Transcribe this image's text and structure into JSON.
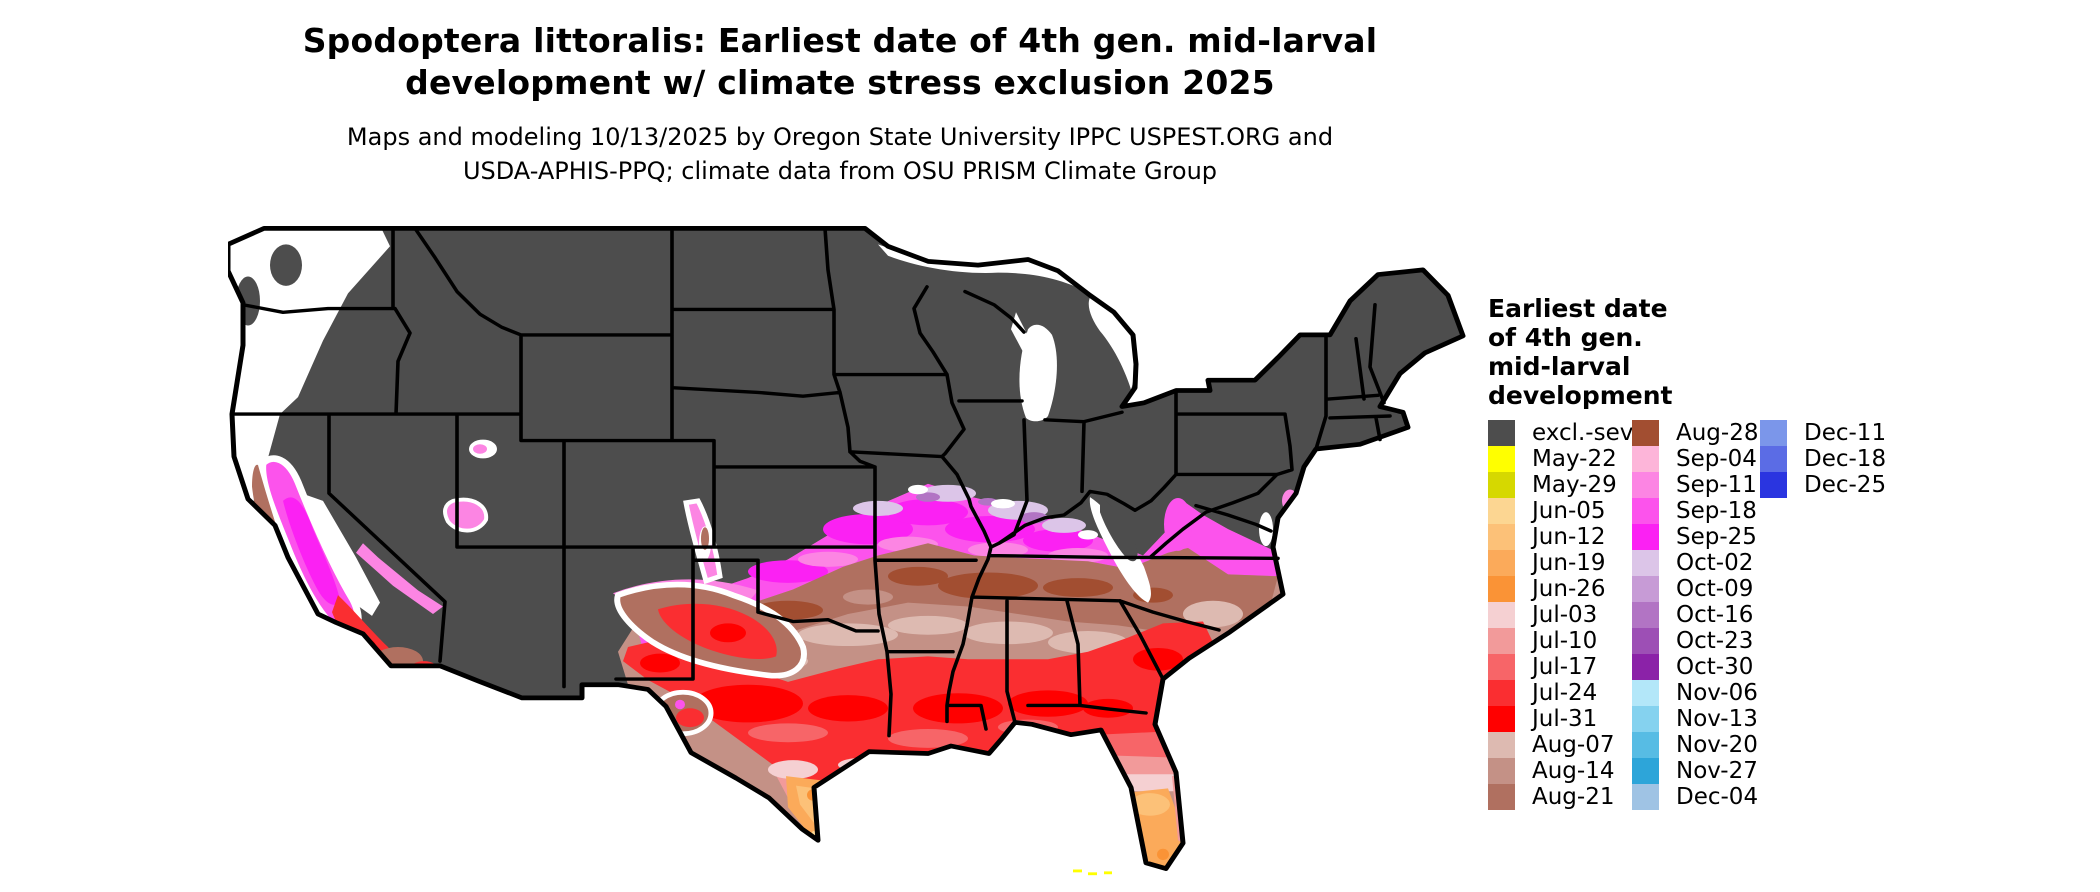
{
  "title": {
    "line1": "Spodoptera littoralis: Earliest date of 4th gen. mid-larval",
    "line2": "development w/ climate stress exclusion 2025"
  },
  "subtitle": {
    "line1": "Maps and modeling 10/13/2025 by Oregon State University IPPC USPEST.ORG and",
    "line2": "USDA-APHIS-PPQ; climate data from OSU PRISM Climate Group"
  },
  "legend": {
    "title_lines": [
      "Earliest date",
      "of 4th gen.",
      "mid-larval",
      "development"
    ],
    "columns": [
      [
        {
          "label": "excl.-sev.",
          "color": "#4d4d4d"
        },
        {
          "label": "May-22",
          "color": "#ffff00"
        },
        {
          "label": "May-29",
          "color": "#d6d800"
        },
        {
          "label": "Jun-05",
          "color": "#fcd692"
        },
        {
          "label": "Jun-12",
          "color": "#fcc178"
        },
        {
          "label": "Jun-19",
          "color": "#fbaa5a"
        },
        {
          "label": "Jun-26",
          "color": "#fa9336"
        },
        {
          "label": "Jul-03",
          "color": "#f5d0d2"
        },
        {
          "label": "Jul-10",
          "color": "#f29a9a"
        },
        {
          "label": "Jul-17",
          "color": "#f76568"
        },
        {
          "label": "Jul-24",
          "color": "#fa2e31"
        },
        {
          "label": "Jul-31",
          "color": "#ff0000"
        },
        {
          "label": "Aug-07",
          "color": "#ddbab1"
        },
        {
          "label": "Aug-14",
          "color": "#c49186"
        },
        {
          "label": "Aug-21",
          "color": "#b07060"
        }
      ],
      [
        {
          "label": "Aug-28",
          "color": "#a24e31"
        },
        {
          "label": "Sep-04",
          "color": "#fdb5d9"
        },
        {
          "label": "Sep-11",
          "color": "#fc85e3"
        },
        {
          "label": "Sep-18",
          "color": "#fc53ec"
        },
        {
          "label": "Sep-25",
          "color": "#fb21f3"
        },
        {
          "label": "Oct-02",
          "color": "#dcc5e8"
        },
        {
          "label": "Oct-09",
          "color": "#c79bd6"
        },
        {
          "label": "Oct-16",
          "color": "#b274c4"
        },
        {
          "label": "Oct-23",
          "color": "#9d4fb5"
        },
        {
          "label": "Oct-30",
          "color": "#8b22a8"
        },
        {
          "label": "Nov-06",
          "color": "#b3e7f9"
        },
        {
          "label": "Nov-13",
          "color": "#85d2ef"
        },
        {
          "label": "Nov-20",
          "color": "#57bce4"
        },
        {
          "label": "Nov-27",
          "color": "#2da5d9"
        },
        {
          "label": "Dec-04",
          "color": "#9fc3e4"
        }
      ],
      [
        {
          "label": "Dec-11",
          "color": "#7b96ea"
        },
        {
          "label": "Dec-18",
          "color": "#5b6ce5"
        },
        {
          "label": "Dec-25",
          "color": "#2a35e0"
        }
      ]
    ]
  },
  "map": {
    "excluded_color": "#4d4d4d",
    "border_color": "#000000",
    "background": "#ffffff",
    "description": "Conterminous US raster map of earliest 4th generation mid-larval development dates"
  }
}
